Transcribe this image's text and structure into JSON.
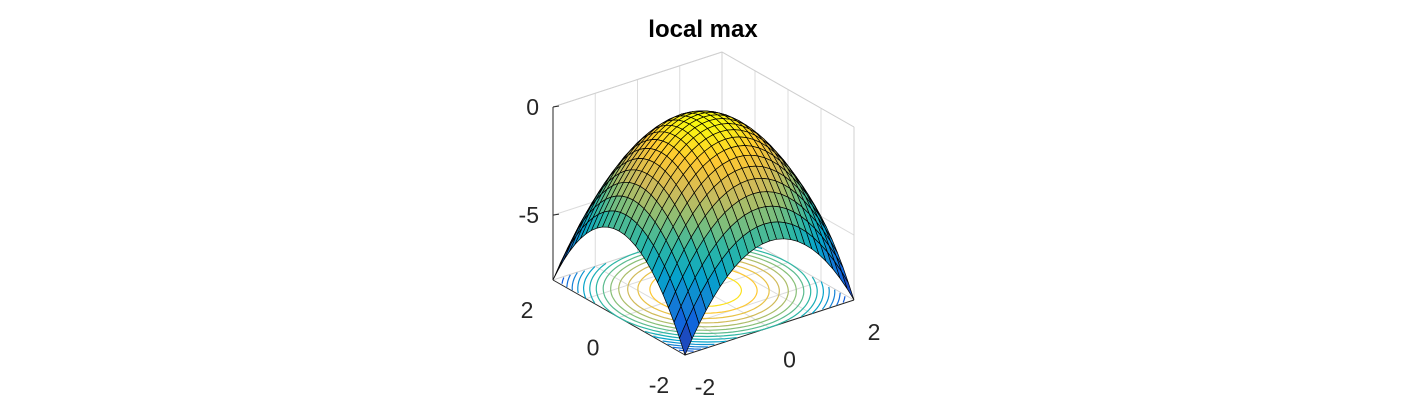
{
  "chart_data": {
    "type": "surface",
    "title": "local max",
    "function": "z = -(x^2 + y^2)",
    "x_range": [
      -2,
      2
    ],
    "y_range": [
      -2,
      2
    ],
    "z_range": [
      -8,
      0
    ],
    "grid_divisions": 24,
    "x_ticks": [
      "-2",
      "0",
      "2"
    ],
    "y_ticks": [
      "-2",
      "0",
      "2"
    ],
    "z_ticks": [
      "0",
      "-5"
    ],
    "colormap": "parula",
    "colormap_stops": [
      "#352a87",
      "#0f5cdd",
      "#1481d6",
      "#06a4ca",
      "#2eb7a4",
      "#87bf77",
      "#d1bb59",
      "#fec832",
      "#f9fb0e"
    ],
    "edge_color": "#000000",
    "contour_projection": true,
    "contour_levels": [
      -7.5,
      -7,
      -6.5,
      -6,
      -5.5,
      -5,
      -4.5,
      -4,
      -3.5,
      -3,
      -2.5,
      -2,
      -1.5,
      -1,
      -0.5
    ],
    "grid": true,
    "box": "open"
  }
}
